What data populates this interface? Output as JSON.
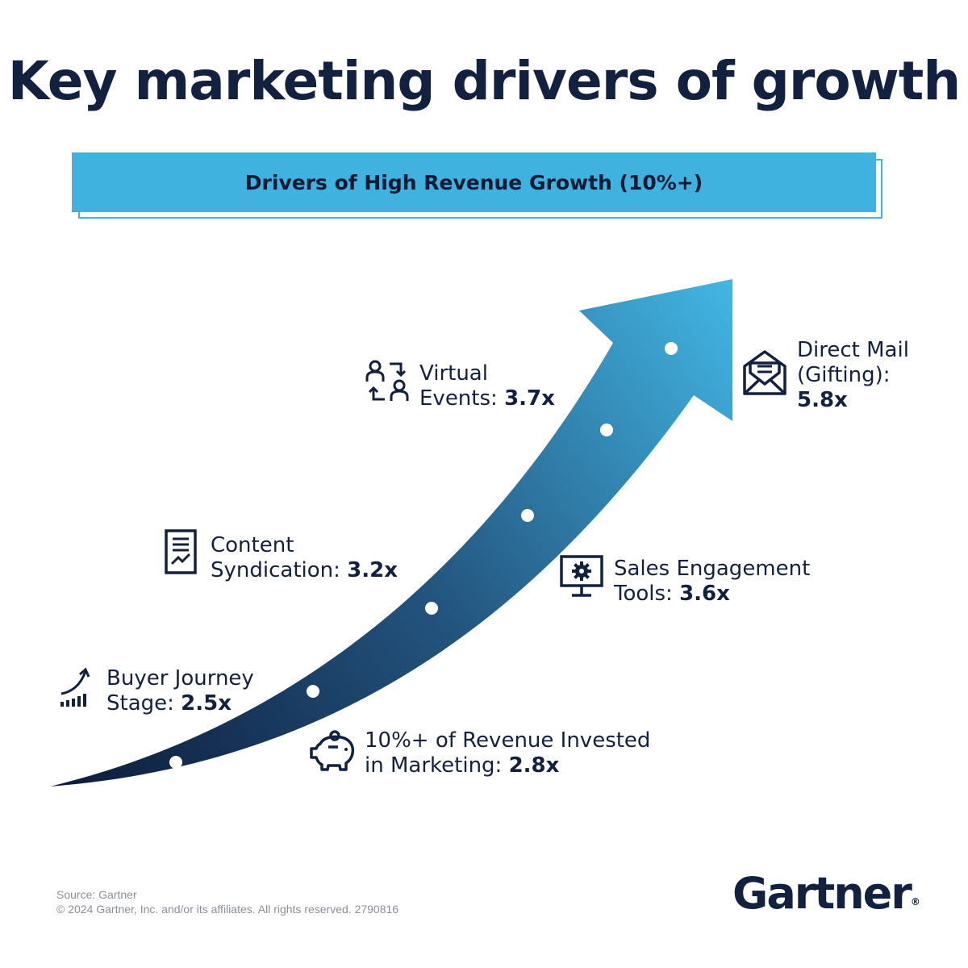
{
  "title": "Key marketing drivers of growth",
  "banner": "Drivers of High Revenue Growth (10%+)",
  "colors": {
    "navy": "#12213f",
    "accent": "#3fb2e0",
    "arrow_start": "#0d1a3a",
    "arrow_end": "#43b6e4"
  },
  "drivers": [
    {
      "line1": "Buyer Journey",
      "line2_prefix": "Stage: ",
      "value": "2.5x",
      "icon": "growth-chart-icon"
    },
    {
      "line1": "10%+ of Revenue Invested",
      "line2_prefix": "in Marketing: ",
      "value": "2.8x",
      "icon": "piggy-bank-icon"
    },
    {
      "line1": "Content",
      "line2_prefix": "Syndication: ",
      "value": "3.2x",
      "icon": "document-chart-icon"
    },
    {
      "line1": "Sales Engagement",
      "line2_prefix": "Tools: ",
      "value": "3.6x",
      "icon": "monitor-gear-icon"
    },
    {
      "line1": "Virtual",
      "line2_prefix": "Events: ",
      "value": "3.7x",
      "icon": "people-exchange-icon"
    },
    {
      "line1": "Direct Mail",
      "line2": "(Gifting):",
      "value": "5.8x",
      "icon": "envelope-icon"
    }
  ],
  "footer": {
    "source": "Source: Gartner",
    "copyright": "© 2024 Gartner, Inc. and/or its affiliates. All rights reserved. 2790816"
  },
  "logo": {
    "text": "Gartner",
    "reg": "®"
  }
}
